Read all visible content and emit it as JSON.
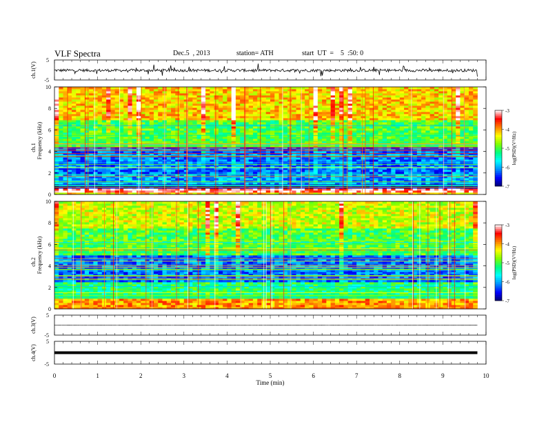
{
  "header": {
    "title": "VLF Spectra",
    "date": "Dec.5  , 2013",
    "station": "station= ATH",
    "start": "start  UT  =    5  :50: 0"
  },
  "colorbar": {
    "label": "log(PSD)(V²/Hz)",
    "ticks": [
      "-3",
      "-4",
      "-5",
      "-6",
      "-7"
    ],
    "colors": [
      "#000070",
      "#0000ff",
      "#0090ff",
      "#00ffff",
      "#00ff80",
      "#80ff00",
      "#ffff00",
      "#ff8000",
      "#ff0000",
      "#ffffff"
    ]
  },
  "chart_data": [
    {
      "type": "line",
      "panel": "ch1-waveform",
      "ylabel": "ch.1(V)",
      "ylim": [
        -5,
        5
      ],
      "yticks": [
        "5",
        "-5"
      ],
      "xlim": [
        0,
        10
      ],
      "waveform": {
        "mean": -0.2,
        "amplitude": 0.7,
        "spikes": true
      }
    },
    {
      "type": "heatmap",
      "panel": "ch1-spectrogram",
      "ylabel": "Frequency  (kHz)",
      "channel_label": "ch.1",
      "ylim": [
        0,
        10
      ],
      "yticks": [
        "0",
        "2",
        "4",
        "6",
        "8",
        "10"
      ],
      "xlim": [
        0,
        9.8
      ],
      "value_range_log_psd": [
        -7,
        -3
      ],
      "bands": [
        {
          "f_from": 0.2,
          "f_to": 0.6,
          "log_psd": -3.2
        },
        {
          "f_from": 0.6,
          "f_to": 1.0,
          "log_psd": -6.8
        },
        {
          "f_from": 1.0,
          "f_to": 2.0,
          "log_psd": -6.0
        },
        {
          "f_from": 2.0,
          "f_to": 4.5,
          "log_psd": -6.2
        },
        {
          "f_from": 4.5,
          "f_to": 7.0,
          "log_psd": -5.0
        },
        {
          "f_from": 7.0,
          "f_to": 10.0,
          "log_psd": -4.2
        }
      ]
    },
    {
      "type": "heatmap",
      "panel": "ch2-spectrogram",
      "ylabel": "Frequency  (kHz)",
      "channel_label": "ch.2",
      "ylim": [
        0,
        10
      ],
      "yticks": [
        "0",
        "2",
        "4",
        "6",
        "8",
        "10"
      ],
      "xlim": [
        0,
        9.8
      ],
      "value_range_log_psd": [
        -7,
        -3
      ],
      "bands": [
        {
          "f_from": 0.0,
          "f_to": 1.0,
          "log_psd": -4.0
        },
        {
          "f_from": 1.0,
          "f_to": 2.5,
          "log_psd": -5.2
        },
        {
          "f_from": 2.5,
          "f_to": 5.0,
          "log_psd": -6.2
        },
        {
          "f_from": 5.0,
          "f_to": 7.5,
          "log_psd": -5.0
        },
        {
          "f_from": 7.5,
          "f_to": 10.0,
          "log_psd": -4.5
        }
      ]
    },
    {
      "type": "line",
      "panel": "ch3-waveform",
      "ylabel": "ch.3(V)",
      "ylim": [
        -5,
        5
      ],
      "yticks": [
        "5",
        "-5"
      ],
      "xlim": [
        0,
        10
      ],
      "waveform": {
        "mean": 0.0,
        "amplitude": 0.05,
        "spikes": false
      }
    },
    {
      "type": "line",
      "panel": "ch4-waveform",
      "ylabel": "ch.4(V)",
      "ylim": [
        -5,
        5
      ],
      "yticks": [
        "5",
        "-5"
      ],
      "xlim": [
        0,
        10
      ],
      "waveform": {
        "mean": 0.0,
        "amplitude": 0.0,
        "spikes": false
      }
    }
  ],
  "xaxis": {
    "label": "Time  (min)",
    "ticks": [
      "0",
      "1",
      "2",
      "3",
      "4",
      "5",
      "6",
      "7",
      "8",
      "9",
      "10"
    ],
    "range": [
      0,
      10
    ]
  }
}
